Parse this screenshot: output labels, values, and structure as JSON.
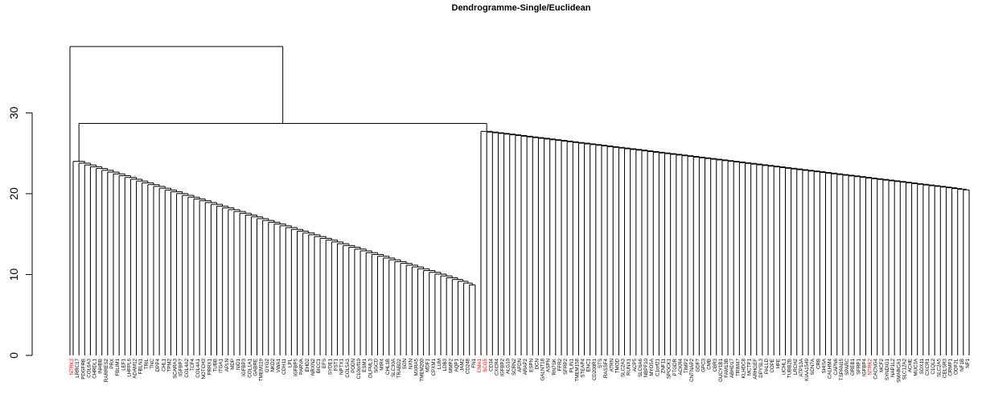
{
  "chart_data": {
    "type": "dendrogram",
    "title": "Dendrogramme-Single/Euclidean",
    "xlabel": "",
    "ylabel": "",
    "ylim": [
      0,
      40
    ],
    "y_ticks": [
      0,
      10,
      20,
      30
    ],
    "highlight_color": "#ff0000",
    "default_label_color": "#000000",
    "labels": [
      "NTRK3",
      "LRRC17",
      "PDGFRB",
      "COL6A3",
      "CHRDL1",
      "INHBB",
      "RARRES2",
      "PRX",
      "FBLIM1",
      "LEF1",
      "LHFPL6",
      "ADAM12",
      "FBLN1",
      "TRIL",
      "TNC",
      "DPP4",
      "CHL1",
      "TPM2",
      "SCARA3",
      "IGFBP7",
      "COL4A2",
      "TCF4",
      "COL4A1",
      "NOTCH3",
      "PRRX1",
      "TUBB",
      "ITGA1",
      "APLN",
      "MDP",
      "NID1",
      "IGFBP3",
      "COL1A1",
      "GABRE",
      "TMEM119",
      "GYG2",
      "NKD2",
      "VWA1",
      "CDH11",
      "LPL",
      "IGFBP5",
      "PARVA",
      "EHD2",
      "NRXN2",
      "BICC1",
      "EFS",
      "SYDE1",
      "FST1",
      "NPTX1",
      "COL5A3",
      "PODN",
      "C10orf10",
      "ESM1",
      "OLFML3",
      "SGCD",
      "MIR4",
      "CHL1B",
      "SLC30A",
      "TRABD2",
      "SGN",
      "NXN",
      "MXRA5",
      "TMEM200",
      "MDF1",
      "CPXM1",
      "LUM",
      "LDB3",
      "MMP2",
      "AQP1",
      "JAM2",
      "CD248",
      "FN1",
      "CMA1",
      "SCG5",
      "CD34",
      "CXCR4",
      "IGFBP2",
      "ALG10",
      "SCRN2",
      "AFDN",
      "ARAP2",
      "ESPN",
      "DCN",
      "GALNT18",
      "ASPN",
      "RN7SK",
      "FFR2",
      "SFRP2",
      "PLIN1",
      "TMEM158",
      "STEAP4",
      "ENC1",
      "CD200R1",
      "STS",
      "RASSF4",
      "ATRN",
      "TMOD",
      "SLC2A3",
      "RUNX1",
      "ACP5",
      "SLC6A6",
      "NBPF10",
      "MYO5A",
      "C1orf21",
      "ZNF11",
      "SPOCK1",
      "PTGDR",
      "ACKR4",
      "TIMP2",
      "CNTNAP2",
      "GDF7",
      "GPC3",
      "CMB",
      "CBR3",
      "GUCY1B1",
      "FAM13B",
      "ABHD17",
      "TRIM47",
      "KLHDC8",
      "MCTP1",
      "ARHGEF",
      "DPYSL3",
      "PALLD",
      "COPE",
      "HFE",
      "UCHL1",
      "TUBB2B",
      "LRCH2",
      "ATP13A",
      "KIAA1549",
      "SCN7A",
      "CRB",
      "SHISA",
      "CALHM4",
      "CAPN6",
      "TSPAN15",
      "SPARC",
      "GREB1",
      "SFRP1",
      "IGFBP4",
      "NTRK2",
      "CACNG4",
      "MCF2",
      "SYNDIG1",
      "NAP1L2",
      "SMARCA1",
      "SLC12A2",
      "ACHE",
      "MUC3A",
      "SOX11",
      "CXCR1",
      "C1QL2",
      "SLC2A5",
      "CELSR3",
      "CRMP1",
      "ODF2L",
      "NF1B",
      "NF1"
    ],
    "highlighted_labels": [
      "NTRK3",
      "CMA1",
      "SCG5",
      "NTRK2"
    ]
  }
}
